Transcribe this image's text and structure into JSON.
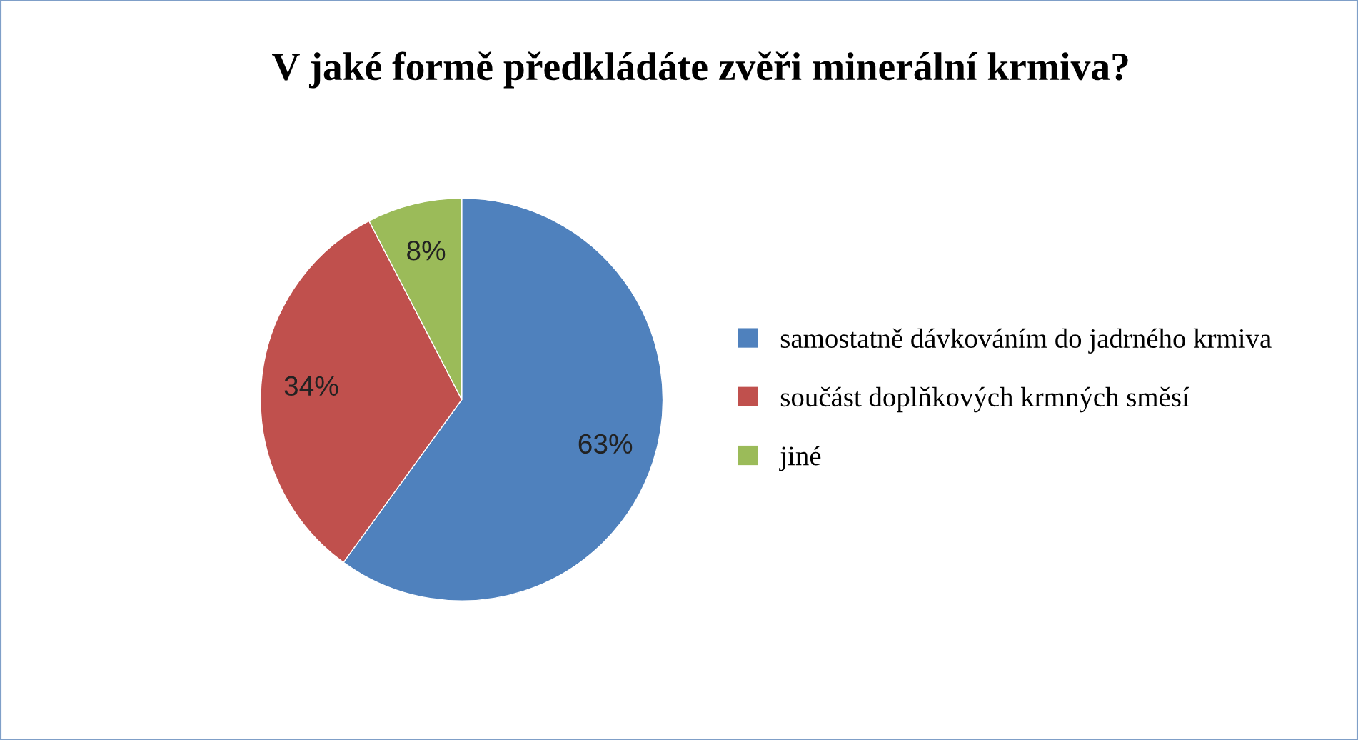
{
  "chart_data": {
    "type": "pie",
    "title": "V jaké formě předkládáte zvěři minerální krmiva?",
    "categories": [
      "samostatně dávkováním do jadrného krmiva",
      "součást doplňkových krmných směsí",
      "jiné"
    ],
    "values": [
      63,
      34,
      8
    ],
    "colors": [
      "#4f81bd",
      "#c0504d",
      "#9bbb59"
    ],
    "value_labels": [
      "63%",
      "34%",
      "8%"
    ],
    "legend": "right"
  }
}
